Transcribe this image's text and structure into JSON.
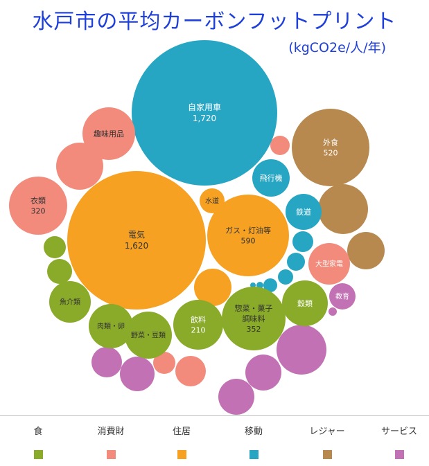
{
  "header": {
    "title": "水戸市の平均カーボンフットプリント",
    "unit": "(kgCO2e/人/年)"
  },
  "chart_data": {
    "type": "bubble",
    "title": "水戸市の平均カーボンフットプリント",
    "unit": "(kgCO2e/人/年)",
    "legend_position": "bottom",
    "categories": [
      {
        "key": "food",
        "name": "食",
        "color": "#8aaa2a"
      },
      {
        "key": "consumer",
        "name": "消費財",
        "color": "#f28b7c"
      },
      {
        "key": "housing",
        "name": "住居",
        "color": "#f7a123"
      },
      {
        "key": "mobility",
        "name": "移動",
        "color": "#27a6c4"
      },
      {
        "key": "leisure",
        "name": "レジャー",
        "color": "#b8894e"
      },
      {
        "key": "service",
        "name": "サービス",
        "color": "#c272b4"
      }
    ],
    "labeled": [
      {
        "name": "自家用車",
        "value": 1720,
        "value_label": "1,720",
        "category": "mobility"
      },
      {
        "name": "電気",
        "value": 1620,
        "value_label": "1,620",
        "category": "housing"
      },
      {
        "name": "ガス・灯油等",
        "value": 590,
        "value_label": "590",
        "category": "housing"
      },
      {
        "name": "外食",
        "value": 520,
        "value_label": "520",
        "category": "leisure"
      },
      {
        "name": "衣類",
        "value": 320,
        "value_label": "320",
        "category": "consumer"
      },
      {
        "name": "惣菜・菓子\n調味料",
        "value": 352,
        "value_label": "352",
        "category": "food"
      },
      {
        "name": "飲料",
        "value": 210,
        "value_label": "210",
        "category": "food"
      },
      {
        "name": "趣味用品",
        "category": "consumer"
      },
      {
        "name": "飛行機",
        "category": "mobility"
      },
      {
        "name": "水道",
        "category": "housing"
      },
      {
        "name": "鉄道",
        "category": "mobility"
      },
      {
        "name": "大型家電",
        "category": "consumer"
      },
      {
        "name": "教育",
        "category": "service"
      },
      {
        "name": "穀類",
        "category": "food"
      },
      {
        "name": "魚介類",
        "category": "food"
      },
      {
        "name": "肉類・卵",
        "category": "food"
      },
      {
        "name": "野菜・豆類",
        "category": "food"
      }
    ],
    "unlabeled": [
      {
        "category": "consumer"
      },
      {
        "category": "food"
      },
      {
        "category": "food"
      },
      {
        "category": "leisure"
      },
      {
        "category": "leisure"
      },
      {
        "category": "mobility"
      },
      {
        "category": "mobility"
      },
      {
        "category": "mobility"
      },
      {
        "category": "mobility"
      },
      {
        "category": "mobility"
      },
      {
        "category": "mobility"
      },
      {
        "category": "housing"
      },
      {
        "category": "service"
      },
      {
        "category": "service"
      },
      {
        "category": "service"
      },
      {
        "category": "service"
      },
      {
        "category": "service"
      },
      {
        "category": "service"
      },
      {
        "category": "consumer"
      },
      {
        "category": "consumer"
      },
      {
        "category": "consumer"
      }
    ]
  }
}
